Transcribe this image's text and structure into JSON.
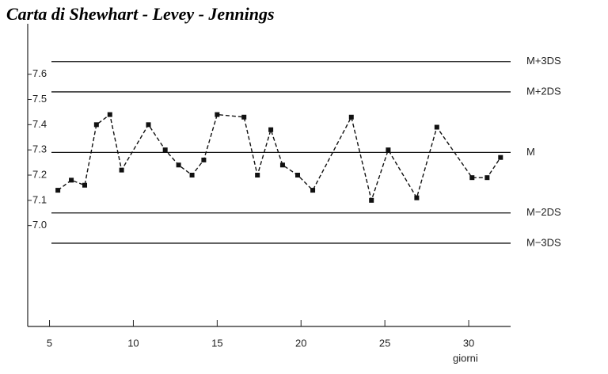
{
  "chart_data": {
    "type": "line",
    "title": "Carta di Shewhart - Levey - Jennings",
    "x_label": "giorni",
    "x": [
      5.5,
      6.3,
      7.1,
      7.8,
      8.6,
      9.3,
      10.9,
      11.9,
      12.7,
      13.5,
      14.2,
      15,
      16.6,
      17.4,
      18.2,
      18.9,
      19.8,
      20.7,
      23,
      24.2,
      25.2,
      26.9,
      28.1,
      30.2,
      31.1,
      31.9
    ],
    "values": [
      7.14,
      7.18,
      7.16,
      7.4,
      7.44,
      7.22,
      7.4,
      7.3,
      7.24,
      7.2,
      7.26,
      7.44,
      7.43,
      7.2,
      7.38,
      7.24,
      7.2,
      7.14,
      7.43,
      7.1,
      7.3,
      7.11,
      7.39,
      7.19,
      7.19,
      7.27
    ],
    "color": "#111111",
    "xlim": [
      3.7,
      32.5
    ],
    "xticks": [
      5,
      10,
      15,
      20,
      25,
      30
    ],
    "ylim": [
      6.6,
      7.8
    ],
    "yticks": [
      {
        "value": 7,
        "label": "7.0"
      },
      7.1,
      7.2,
      7.3,
      7.4,
      7.5,
      7.6
    ],
    "control_lines": [
      {
        "label": "M+3DS",
        "value": 7.65
      },
      {
        "label": "M+2DS",
        "value": 7.53
      },
      {
        "label": "M",
        "value": 7.29
      },
      {
        "label": "M−2DS",
        "value": 7.05
      },
      {
        "label": "M−3DS",
        "value": 6.93
      }
    ]
  }
}
